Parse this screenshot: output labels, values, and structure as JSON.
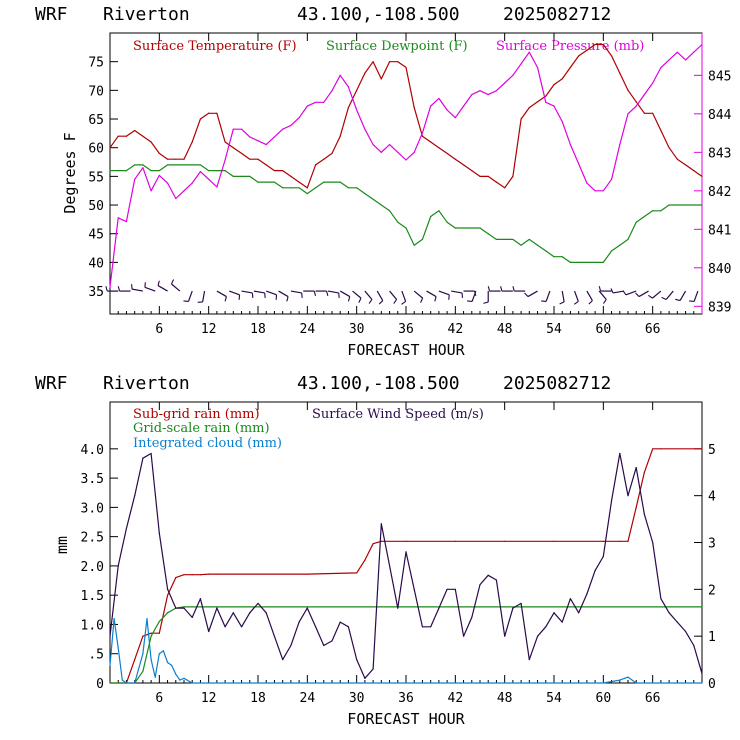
{
  "charts": [
    {
      "header": {
        "model": "WRF",
        "station": "Riverton",
        "coords": "43.100,-108.500",
        "run": "2025082712"
      },
      "legend": {
        "temp": "Surface Temperature (F)",
        "dew": "Surface Dewpoint (F)",
        "pres": "Surface Pressure (mb)"
      },
      "xlabel": "FORECAST HOUR",
      "ylabel_left": "Degrees F",
      "x_ticks": [
        "6",
        "12",
        "18",
        "24",
        "30",
        "36",
        "42",
        "48",
        "54",
        "60",
        "66"
      ],
      "y_left_ticks": [
        "35",
        "40",
        "45",
        "50",
        "55",
        "60",
        "65",
        "70",
        "75"
      ],
      "y_right_ticks": [
        "839",
        "840",
        "841",
        "842",
        "843",
        "844",
        "845"
      ]
    },
    {
      "header": {
        "model": "WRF",
        "station": "Riverton",
        "coords": "43.100,-108.500",
        "run": "2025082712"
      },
      "legend": {
        "subgrid": "Sub-grid rain (mm)",
        "gridscale": "Grid-scale rain (mm)",
        "cloud": "Integrated cloud (mm)",
        "wind": "Surface Wind Speed (m/s)"
      },
      "xlabel": "FORECAST HOUR",
      "ylabel_left": "mm",
      "x_ticks": [
        "6",
        "12",
        "18",
        "24",
        "30",
        "36",
        "42",
        "48",
        "54",
        "60",
        "66"
      ],
      "y_left_ticks": [
        "0",
        ".5",
        "1.0",
        "1.5",
        "2.0",
        "2.5",
        "3.0",
        "3.5",
        "4.0"
      ],
      "y_right_ticks": [
        "0",
        "1",
        "2",
        "3",
        "4",
        "5"
      ]
    }
  ],
  "colors": {
    "temp": "#b00000",
    "dew": "#1a8a1a",
    "pres": "#e000e0",
    "subgrid": "#b00000",
    "gridscale": "#1a8a1a",
    "cloud": "#0a7fd0",
    "wind": "#2a0a4a",
    "barb": "#2a0a4a"
  },
  "chart_data": [
    {
      "type": "line",
      "xlim": [
        0,
        72
      ],
      "ylim": [
        31,
        80
      ],
      "y2lim": [
        838.8,
        846.1
      ],
      "grid": false,
      "legend_position": "top",
      "series": [
        {
          "name": "Surface Temperature (F)",
          "axis": "left",
          "x": [
            0,
            1,
            2,
            3,
            4,
            5,
            6,
            7,
            8,
            9,
            10,
            11,
            12,
            13,
            14,
            15,
            16,
            17,
            18,
            19,
            20,
            21,
            22,
            23,
            24,
            25,
            26,
            27,
            28,
            29,
            30,
            31,
            32,
            33,
            34,
            35,
            36,
            37,
            38,
            39,
            40,
            41,
            42,
            43,
            44,
            45,
            46,
            47,
            48,
            49,
            50,
            51,
            52,
            53,
            54,
            55,
            56,
            57,
            58,
            59,
            60,
            61,
            62,
            63,
            64,
            65,
            66,
            67,
            68,
            69,
            70,
            71,
            72
          ],
          "values": [
            60,
            62,
            62,
            63,
            62,
            61,
            59,
            58,
            58,
            58,
            61,
            65,
            66,
            66,
            61,
            60,
            59,
            58,
            58,
            57,
            56,
            56,
            55,
            54,
            53,
            57,
            58,
            59,
            62,
            67,
            70,
            73,
            75,
            72,
            75,
            75,
            74,
            67,
            62,
            61,
            60,
            59,
            58,
            57,
            56,
            55,
            55,
            54,
            53,
            55,
            65,
            67,
            68,
            69,
            71,
            72,
            74,
            76,
            77,
            78,
            78,
            76,
            73,
            70,
            68,
            66,
            66,
            63,
            60,
            58,
            57,
            56,
            55
          ]
        },
        {
          "name": "Surface Dewpoint (F)",
          "axis": "left",
          "x": [
            0,
            1,
            2,
            3,
            4,
            5,
            6,
            7,
            8,
            9,
            10,
            11,
            12,
            13,
            14,
            15,
            16,
            17,
            18,
            19,
            20,
            21,
            22,
            23,
            24,
            25,
            26,
            27,
            28,
            29,
            30,
            31,
            32,
            33,
            34,
            35,
            36,
            37,
            38,
            39,
            40,
            41,
            42,
            43,
            44,
            45,
            46,
            47,
            48,
            49,
            50,
            51,
            52,
            53,
            54,
            55,
            56,
            57,
            58,
            59,
            60,
            61,
            62,
            63,
            64,
            65,
            66,
            67,
            68,
            69,
            70,
            71,
            72
          ],
          "values": [
            56,
            56,
            56,
            57,
            57,
            56,
            56,
            57,
            57,
            57,
            57,
            57,
            56,
            56,
            56,
            55,
            55,
            55,
            54,
            54,
            54,
            53,
            53,
            53,
            52,
            53,
            54,
            54,
            54,
            53,
            53,
            52,
            51,
            50,
            49,
            47,
            46,
            43,
            44,
            48,
            49,
            47,
            46,
            46,
            46,
            46,
            45,
            44,
            44,
            44,
            43,
            44,
            43,
            42,
            41,
            41,
            40,
            40,
            40,
            40,
            40,
            42,
            43,
            44,
            47,
            48,
            49,
            49,
            50,
            50,
            50,
            50,
            50
          ]
        },
        {
          "name": "Surface Pressure (mb)",
          "axis": "right",
          "x": [
            0,
            1,
            2,
            3,
            4,
            5,
            6,
            7,
            8,
            9,
            10,
            11,
            12,
            13,
            14,
            15,
            16,
            17,
            18,
            19,
            20,
            21,
            22,
            23,
            24,
            25,
            26,
            27,
            28,
            29,
            30,
            31,
            32,
            33,
            34,
            35,
            36,
            37,
            38,
            39,
            40,
            41,
            42,
            43,
            44,
            45,
            46,
            47,
            48,
            49,
            50,
            51,
            52,
            53,
            54,
            55,
            56,
            57,
            58,
            59,
            60,
            61,
            62,
            63,
            64,
            65,
            66,
            67,
            68,
            69,
            70,
            71,
            72
          ],
          "values": [
            839.5,
            841.3,
            841.2,
            842.3,
            842.6,
            842.0,
            842.4,
            842.2,
            841.8,
            842.0,
            842.2,
            842.5,
            842.3,
            842.1,
            842.8,
            843.6,
            843.6,
            843.4,
            843.3,
            843.2,
            843.4,
            843.6,
            843.7,
            843.9,
            844.2,
            844.3,
            844.3,
            844.6,
            845.0,
            844.7,
            844.1,
            843.6,
            843.2,
            843.0,
            843.2,
            843.0,
            842.8,
            843.0,
            843.5,
            844.2,
            844.4,
            844.1,
            843.9,
            844.2,
            844.5,
            844.6,
            844.5,
            844.6,
            844.8,
            845.0,
            845.3,
            845.6,
            845.2,
            844.3,
            844.2,
            843.8,
            843.2,
            842.7,
            842.2,
            842.0,
            842.0,
            842.3,
            843.2,
            844.0,
            844.2,
            844.5,
            844.8,
            845.2,
            845.4,
            845.6,
            845.4,
            845.6,
            845.8
          ]
        }
      ],
      "wind_barbs": {
        "y": 35,
        "x": [
          1,
          2.5,
          4,
          5.5,
          7,
          8.5,
          10,
          11.5,
          13,
          14.5,
          16,
          17.5,
          19,
          20.5,
          22,
          23.5,
          25,
          26.5,
          28,
          29.5,
          31,
          32.5,
          34,
          35.5,
          37,
          38.5,
          40,
          41.5,
          43,
          44.5,
          46,
          47.5,
          49,
          50.5,
          52,
          53.5,
          55,
          56.5,
          58,
          59.5,
          61,
          62.5,
          64,
          65.5,
          67,
          68.5,
          70,
          71.5
        ],
        "direction_deg": [
          270,
          270,
          280,
          290,
          300,
          310,
          200,
          190,
          120,
          110,
          100,
          100,
          110,
          120,
          100,
          90,
          90,
          100,
          120,
          130,
          140,
          150,
          140,
          160,
          130,
          120,
          110,
          100,
          90,
          200,
          180,
          270,
          270,
          270,
          240,
          200,
          170,
          160,
          150,
          140,
          270,
          260,
          250,
          240,
          230,
          220,
          210,
          200
        ]
      }
    },
    {
      "type": "line",
      "xlim": [
        0,
        72
      ],
      "ylim": [
        0,
        4.8
      ],
      "y2lim": [
        0,
        6.0
      ],
      "grid": false,
      "legend_position": "top",
      "series": [
        {
          "name": "Sub-grid rain (mm)",
          "axis": "left",
          "x": [
            0,
            2,
            3,
            4,
            5,
            6,
            7,
            8,
            9,
            10,
            11,
            12,
            13,
            18,
            24,
            30,
            31,
            32,
            33,
            36,
            42,
            48,
            54,
            60,
            62,
            63,
            64,
            65,
            66,
            67,
            72
          ],
          "values": [
            0,
            0,
            0.4,
            0.8,
            0.85,
            0.85,
            1.5,
            1.8,
            1.85,
            1.85,
            1.85,
            1.86,
            1.86,
            1.86,
            1.86,
            1.88,
            2.1,
            2.38,
            2.42,
            2.42,
            2.42,
            2.42,
            2.42,
            2.42,
            2.42,
            2.42,
            3.0,
            3.6,
            4.0,
            4.0,
            4.0
          ]
        },
        {
          "name": "Grid-scale rain (mm)",
          "axis": "left",
          "x": [
            0,
            3,
            4,
            5,
            6,
            7,
            8,
            9,
            10,
            12,
            24,
            36,
            48,
            60,
            72
          ],
          "values": [
            0,
            0,
            0.2,
            0.8,
            1.05,
            1.2,
            1.28,
            1.3,
            1.3,
            1.3,
            1.3,
            1.3,
            1.3,
            1.3,
            1.3
          ]
        },
        {
          "name": "Integrated cloud (mm)",
          "axis": "left",
          "x": [
            0,
            0.5,
            1,
            1.5,
            2,
            3,
            4,
            4.5,
            5,
            5.5,
            6,
            6.5,
            7,
            7.5,
            8,
            8.5,
            9,
            10,
            12,
            24,
            36,
            48,
            60,
            62,
            63,
            64,
            72
          ],
          "values": [
            0.3,
            1.1,
            0.6,
            0.05,
            0,
            0,
            0.5,
            1.1,
            0.4,
            0.1,
            0.5,
            0.55,
            0.35,
            0.3,
            0.15,
            0.05,
            0.08,
            0,
            0,
            0,
            0,
            0,
            0,
            0.05,
            0.1,
            0,
            0
          ]
        },
        {
          "name": "Surface Wind Speed (m/s)",
          "axis": "right",
          "x": [
            0,
            1,
            2,
            3,
            4,
            5,
            6,
            7,
            8,
            9,
            10,
            11,
            12,
            13,
            14,
            15,
            16,
            17,
            18,
            19,
            20,
            21,
            22,
            23,
            24,
            25,
            26,
            27,
            28,
            29,
            30,
            31,
            32,
            33,
            34,
            35,
            36,
            37,
            38,
            39,
            40,
            41,
            42,
            43,
            44,
            45,
            46,
            47,
            48,
            49,
            50,
            51,
            52,
            53,
            54,
            55,
            56,
            57,
            58,
            59,
            60,
            61,
            62,
            63,
            64,
            65,
            66,
            67,
            68,
            69,
            70,
            71,
            72
          ],
          "values": [
            1.0,
            2.5,
            3.3,
            4.0,
            4.8,
            4.9,
            3.2,
            2.0,
            1.6,
            1.6,
            1.4,
            1.8,
            1.1,
            1.6,
            1.2,
            1.5,
            1.2,
            1.5,
            1.7,
            1.5,
            1.0,
            0.5,
            0.8,
            1.3,
            1.6,
            1.2,
            0.8,
            0.9,
            1.3,
            1.2,
            0.5,
            0.1,
            0.3,
            3.4,
            2.5,
            1.6,
            2.8,
            2.0,
            1.2,
            1.2,
            1.6,
            2.0,
            2.0,
            1.0,
            1.4,
            2.1,
            2.3,
            2.2,
            1.0,
            1.6,
            1.7,
            0.5,
            1.0,
            1.2,
            1.5,
            1.3,
            1.8,
            1.5,
            1.9,
            2.4,
            2.7,
            3.9,
            4.9,
            4.0,
            4.6,
            3.6,
            3.0,
            1.8,
            1.5,
            1.3,
            1.1,
            0.8,
            0.2
          ]
        }
      ]
    }
  ]
}
